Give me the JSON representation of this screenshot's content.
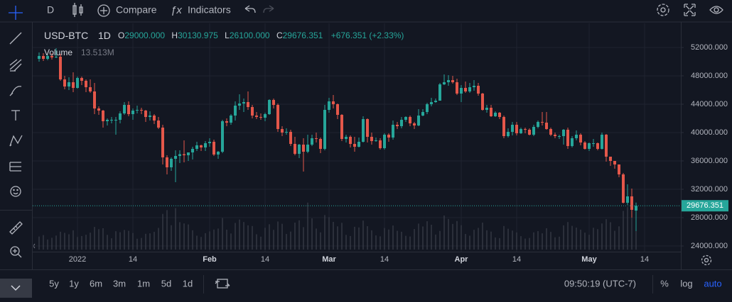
{
  "toolbar": {
    "interval": "D",
    "compare": "Compare",
    "indicators": "Indicators"
  },
  "chart_data": {
    "type": "candlestick",
    "symbol": "USD-BTC",
    "interval": "1D",
    "ohlc_labels": {
      "open": {
        "prefix": "O",
        "label": "29000.000"
      },
      "high": {
        "prefix": "H",
        "label": "30130.975"
      },
      "low": {
        "prefix": "L",
        "label": "26100.000"
      },
      "close": {
        "prefix": "C",
        "label": "29676.351"
      }
    },
    "change_label": "+676.351 (+2.33%)",
    "volume_title": "Volume",
    "volume_label": "13.513M",
    "up_color": "#26a69a",
    "down_color": "#e4574a",
    "volume_color": "#434752",
    "open": [
      50400,
      50800,
      50400,
      50800,
      50600,
      50700,
      47500,
      46500,
      47100,
      46300,
      47700,
      47300,
      46400,
      45800,
      43400,
      43100,
      41600,
      41800,
      41800,
      41800,
      42700,
      43900,
      42600,
      43100,
      43200,
      43100,
      42200,
      42400,
      41700,
      40700,
      36500,
      35100,
      36300,
      36700,
      36950,
      36800,
      37200,
      37700,
      38200,
      37900,
      38500,
      38700,
      36900,
      37300,
      41600,
      41400,
      42400,
      43800,
      44100,
      44300,
      43600,
      42400,
      42200,
      42100,
      42600,
      44600,
      43900,
      40500,
      40000,
      40100,
      38400,
      37000,
      38300,
      37300,
      38300,
      39200,
      39100,
      37700,
      43200,
      44400,
      44000,
      42500,
      39100,
      39400,
      38400,
      38000,
      38700,
      41900,
      39400,
      38800,
      38900,
      37800,
      39700,
      39300,
      41100,
      40900,
      41800,
      42200,
      41300,
      41000,
      42400,
      42900,
      44000,
      44300,
      44500,
      46800,
      47100,
      47400,
      47100,
      45500,
      46300,
      45800,
      46400,
      46600,
      45500,
      43200,
      43500,
      42300,
      42800,
      42200,
      39500,
      40100,
      41100,
      39900,
      40500,
      40400,
      39700,
      40800,
      41500,
      41400,
      40500,
      39700,
      39500,
      39500,
      40400,
      38100,
      39200,
      39700,
      38600,
      37700,
      38500,
      38500,
      37700,
      39700,
      36600,
      36000,
      35500,
      34100,
      30100,
      31000,
      29000
    ],
    "high": [
      51300,
      51200,
      51000,
      51200,
      51900,
      51100,
      48000,
      47800,
      48500,
      47900,
      47900,
      47500,
      47500,
      47000,
      43700,
      43200,
      42000,
      42200,
      42200,
      43000,
      44300,
      44400,
      43400,
      43800,
      43500,
      43200,
      43000,
      42600,
      42200,
      41100,
      36800,
      36500,
      37500,
      37500,
      38900,
      37200,
      38000,
      38700,
      38300,
      38800,
      39200,
      39000,
      37400,
      41800,
      42000,
      42600,
      44400,
      45400,
      44800,
      45800,
      43900,
      42900,
      42700,
      42800,
      44700,
      44800,
      44100,
      40900,
      40600,
      40400,
      39400,
      38400,
      39200,
      39700,
      39700,
      40000,
      39300,
      43900,
      44900,
      45300,
      44100,
      42600,
      39700,
      39600,
      39400,
      39300,
      42300,
      42000,
      40000,
      39300,
      39200,
      39900,
      39900,
      41700,
      41500,
      42200,
      42300,
      42400,
      41500,
      43300,
      43300,
      44200,
      44900,
      44800,
      47000,
      48200,
      48100,
      48000,
      47600,
      46700,
      47200,
      47000,
      47400,
      47000,
      45600,
      43900,
      43900,
      43000,
      42900,
      42400,
      40600,
      41500,
      41500,
      40700,
      40700,
      40600,
      41100,
      41700,
      42900,
      42900,
      40700,
      40000,
      39700,
      40500,
      40700,
      39500,
      40300,
      39900,
      38800,
      38600,
      39100,
      38600,
      40000,
      39800,
      36600,
      36000,
      35500,
      34300,
      32700,
      32100,
      30130.975
    ],
    "low": [
      50000,
      50100,
      50200,
      50300,
      50500,
      47300,
      46100,
      46000,
      45700,
      46200,
      46700,
      45700,
      45600,
      42600,
      42500,
      40700,
      41000,
      41300,
      39700,
      41300,
      42500,
      42300,
      41800,
      42700,
      42600,
      41500,
      41700,
      41200,
      40500,
      35500,
      34100,
      34600,
      33000,
      35700,
      35800,
      36000,
      36200,
      37400,
      37400,
      37400,
      38000,
      36700,
      36300,
      37100,
      40900,
      41100,
      41700,
      43200,
      42900,
      43200,
      42000,
      41900,
      41800,
      41600,
      42500,
      43400,
      40100,
      39500,
      39700,
      38100,
      36800,
      36400,
      34500,
      37100,
      38100,
      38600,
      37100,
      37500,
      42800,
      43400,
      41900,
      38800,
      38600,
      37900,
      37300,
      37900,
      38600,
      38600,
      38300,
      38700,
      37600,
      37600,
      38700,
      39000,
      40500,
      40600,
      41500,
      40900,
      40500,
      40900,
      42300,
      42600,
      43700,
      44200,
      44500,
      46700,
      46600,
      46900,
      45300,
      44300,
      45600,
      45600,
      45900,
      45200,
      43100,
      42800,
      42200,
      42200,
      41900,
      39200,
      39300,
      39600,
      39600,
      39800,
      39900,
      39600,
      39500,
      40600,
      41000,
      40400,
      39500,
      39200,
      39100,
      38300,
      37700,
      37900,
      38900,
      38200,
      37600,
      37400,
      38000,
      37500,
      37600,
      35900,
      35300,
      34900,
      33700,
      30000,
      29800,
      28000,
      26100
    ],
    "close": [
      50800,
      50400,
      50800,
      50600,
      50700,
      47500,
      46500,
      47100,
      46300,
      47700,
      47300,
      46400,
      45800,
      43400,
      43100,
      41600,
      41800,
      41800,
      41800,
      42700,
      43900,
      42600,
      43100,
      43200,
      43100,
      42200,
      42400,
      41700,
      40700,
      36500,
      35100,
      36300,
      36700,
      36950,
      36800,
      37200,
      37700,
      38200,
      37900,
      38500,
      38700,
      36900,
      37300,
      41600,
      41400,
      42400,
      43800,
      44100,
      44300,
      43600,
      42400,
      42200,
      42100,
      42600,
      44600,
      43900,
      40500,
      40000,
      40100,
      38400,
      37000,
      38300,
      37300,
      38300,
      39200,
      39100,
      37700,
      43200,
      44400,
      44000,
      42500,
      39100,
      39400,
      38400,
      38000,
      38700,
      41900,
      39400,
      38800,
      38900,
      37800,
      39700,
      39300,
      41100,
      40900,
      41800,
      42200,
      41300,
      41000,
      42400,
      42900,
      44000,
      44300,
      44500,
      46800,
      47100,
      47400,
      47100,
      45500,
      46300,
      45800,
      46400,
      46600,
      45500,
      43200,
      43500,
      42300,
      42800,
      42200,
      39500,
      40100,
      41100,
      39900,
      40500,
      40400,
      39700,
      40800,
      41500,
      41400,
      40500,
      39700,
      39500,
      39500,
      40400,
      38100,
      39200,
      39700,
      38600,
      37700,
      38500,
      38500,
      37700,
      39700,
      36600,
      36000,
      35500,
      34100,
      30100,
      31000,
      29100,
      29676.351
    ],
    "volume": [
      8.2,
      9.1,
      6.3,
      7.4,
      8.8,
      11.2,
      10.5,
      9.6,
      12.1,
      7.9,
      8.5,
      9.3,
      10.6,
      14.2,
      12.8,
      13.4,
      9.2,
      7.1,
      11.5,
      10.9,
      12.3,
      11.8,
      10.4,
      6.8,
      7.3,
      9.9,
      10.2,
      11.1,
      13.6,
      22.4,
      24.8,
      15.3,
      26.1,
      17.2,
      16.4,
      15.8,
      12.1,
      8.7,
      7.9,
      10.3,
      11.4,
      12.6,
      13.2,
      19.8,
      12.5,
      10.1,
      16.7,
      18.9,
      17.3,
      15.2,
      14.8,
      9.6,
      8.1,
      13.7,
      15.9,
      12.4,
      17.6,
      16.2,
      9.8,
      11.3,
      16.9,
      18.4,
      14.1,
      29.5,
      19.6,
      13.2,
      10.8,
      21.7,
      20.3,
      17.4,
      14.6,
      16.8,
      9.2,
      8.5,
      14.3,
      13.9,
      18.2,
      14.7,
      12.1,
      8.9,
      8.3,
      13.5,
      12.6,
      15.1,
      11.8,
      11.2,
      8.6,
      8.2,
      12.9,
      16.3,
      14.5,
      17.8,
      15.6,
      9.4,
      11.7,
      21.4,
      19.2,
      16.1,
      17.9,
      15.3,
      9.8,
      8.7,
      12.4,
      13.6,
      16.9,
      12.1,
      11.3,
      7.6,
      7.2,
      14.8,
      13.1,
      11.9,
      10.7,
      8.4,
      6.9,
      7.3,
      10.8,
      11.6,
      10.2,
      13.4,
      11.1,
      7.7,
      8.1,
      15.2,
      17.3,
      14.9,
      13.8,
      12.5,
      10.6,
      9.3,
      13.7,
      12.8,
      16.4,
      19.1,
      17.2,
      11.8,
      14.6,
      24.3,
      26.7,
      31.2,
      13.513
    ],
    "ylim": [
      23200,
      55400
    ],
    "yticks": [
      {
        "value": 52000,
        "label": "52000.000"
      },
      {
        "value": 48000,
        "label": "48000.000"
      },
      {
        "value": 44000,
        "label": "44000.000"
      },
      {
        "value": 40000,
        "label": "40000.000"
      },
      {
        "value": 36000,
        "label": "36000.000"
      },
      {
        "value": 32000,
        "label": "32000.000"
      },
      {
        "value": 28000,
        "label": "28000.000"
      },
      {
        "value": 24000,
        "label": "24000.000"
      }
    ],
    "xticks": [
      {
        "value": 9,
        "label": "2022"
      },
      {
        "value": 22,
        "label": "14"
      },
      {
        "value": 40,
        "label": "Feb"
      },
      {
        "value": 53,
        "label": "14"
      },
      {
        "value": 68,
        "label": "Mar"
      },
      {
        "value": 81,
        "label": "14"
      },
      {
        "value": 99,
        "label": "Apr"
      },
      {
        "value": 112,
        "label": "14"
      },
      {
        "value": 129,
        "label": "May"
      },
      {
        "value": 142,
        "label": "14"
      }
    ],
    "grid": true,
    "last_price_line": true
  },
  "range_bar": {
    "ranges": [
      "5y",
      "1y",
      "6m",
      "3m",
      "1m",
      "5d",
      "1d"
    ],
    "clock": "09:50:19 (UTC-7)",
    "scale_options": [
      "%",
      "log",
      "auto"
    ]
  }
}
